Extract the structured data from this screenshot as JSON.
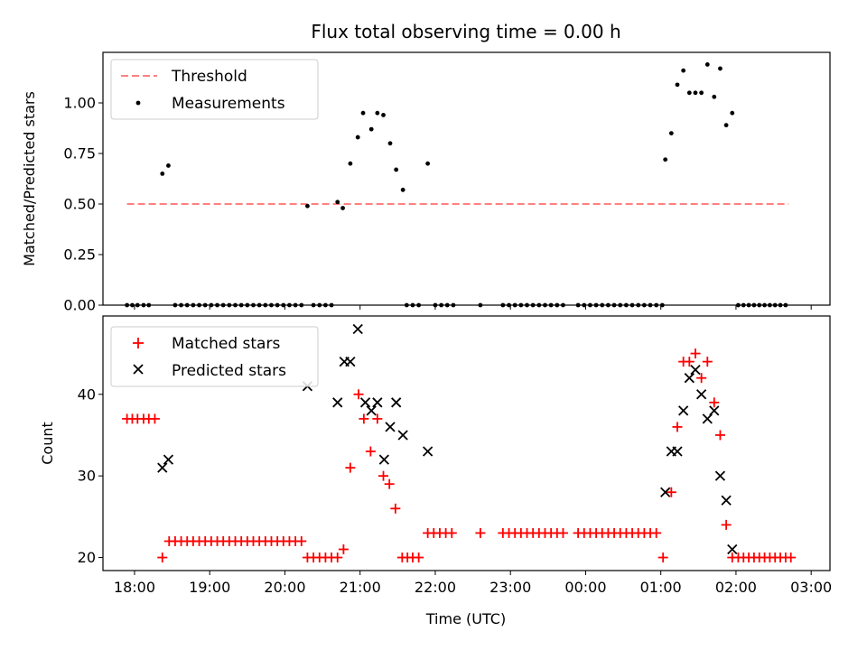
{
  "chart_data": [
    {
      "type": "scatter",
      "title": "Flux total observing time = 0.00 h",
      "ylabel": "Matched/Predicted stars",
      "ylim": [
        0,
        1.25
      ],
      "yticks": [
        0,
        0.25,
        0.5,
        0.75,
        1.0
      ],
      "ytick_labels": [
        "0.00",
        "0.25",
        "0.50",
        "0.75",
        "1.00"
      ],
      "xlim": [
        17.58,
        27.25
      ],
      "xticks": [
        18,
        19,
        20,
        21,
        22,
        23,
        24,
        25,
        26,
        27
      ],
      "legend": {
        "placement": "upper left",
        "entries": [
          "Threshold",
          "Measurements"
        ]
      },
      "threshold": {
        "name": "Threshold",
        "value": 0.5,
        "x": [
          17.9,
          26.7
        ],
        "color": "#ff8080"
      },
      "series": [
        {
          "name": "Measurements",
          "color": "#000000",
          "points": [
            [
              17.9,
              0
            ],
            [
              17.97,
              0
            ],
            [
              18.04,
              0
            ],
            [
              18.12,
              0
            ],
            [
              18.19,
              0
            ],
            [
              18.37,
              0.65
            ],
            [
              18.45,
              0.69
            ],
            [
              18.54,
              0
            ],
            [
              18.62,
              0
            ],
            [
              18.7,
              0
            ],
            [
              18.78,
              0
            ],
            [
              18.86,
              0
            ],
            [
              18.94,
              0
            ],
            [
              19.02,
              0
            ],
            [
              19.1,
              0
            ],
            [
              19.18,
              0
            ],
            [
              19.26,
              0
            ],
            [
              19.34,
              0
            ],
            [
              19.42,
              0
            ],
            [
              19.5,
              0
            ],
            [
              19.58,
              0
            ],
            [
              19.66,
              0
            ],
            [
              19.74,
              0
            ],
            [
              19.82,
              0
            ],
            [
              19.9,
              0
            ],
            [
              19.98,
              0
            ],
            [
              20.06,
              0
            ],
            [
              20.14,
              0
            ],
            [
              20.22,
              0
            ],
            [
              20.3,
              0.49
            ],
            [
              20.38,
              0
            ],
            [
              20.46,
              0
            ],
            [
              20.54,
              0
            ],
            [
              20.62,
              0
            ],
            [
              20.7,
              0.51
            ],
            [
              20.77,
              0.48
            ],
            [
              20.87,
              0.7
            ],
            [
              20.97,
              0.83
            ],
            [
              21.04,
              0.95
            ],
            [
              21.15,
              0.87
            ],
            [
              21.23,
              0.95
            ],
            [
              21.31,
              0.94
            ],
            [
              21.4,
              0.8
            ],
            [
              21.48,
              0.67
            ],
            [
              21.57,
              0.57
            ],
            [
              21.62,
              0
            ],
            [
              21.7,
              0
            ],
            [
              21.78,
              0
            ],
            [
              21.9,
              0.7
            ],
            [
              22.0,
              0
            ],
            [
              22.08,
              0
            ],
            [
              22.16,
              0
            ],
            [
              22.24,
              0
            ],
            [
              22.6,
              0
            ],
            [
              22.9,
              0
            ],
            [
              22.98,
              0
            ],
            [
              23.06,
              0
            ],
            [
              23.14,
              0
            ],
            [
              23.22,
              0
            ],
            [
              23.3,
              0
            ],
            [
              23.38,
              0
            ],
            [
              23.46,
              0
            ],
            [
              23.54,
              0
            ],
            [
              23.62,
              0
            ],
            [
              23.7,
              0
            ],
            [
              23.9,
              0
            ],
            [
              23.98,
              0
            ],
            [
              24.06,
              0
            ],
            [
              24.14,
              0
            ],
            [
              24.22,
              0
            ],
            [
              24.3,
              0
            ],
            [
              24.38,
              0
            ],
            [
              24.46,
              0
            ],
            [
              24.54,
              0
            ],
            [
              24.62,
              0
            ],
            [
              24.7,
              0
            ],
            [
              24.78,
              0
            ],
            [
              24.86,
              0
            ],
            [
              24.94,
              0
            ],
            [
              25.02,
              0
            ],
            [
              25.06,
              0.72
            ],
            [
              25.14,
              0.85
            ],
            [
              25.22,
              1.09
            ],
            [
              25.3,
              1.16
            ],
            [
              25.38,
              1.05
            ],
            [
              25.46,
              1.05
            ],
            [
              25.54,
              1.05
            ],
            [
              25.62,
              1.19
            ],
            [
              25.71,
              1.03
            ],
            [
              25.79,
              1.17
            ],
            [
              25.87,
              0.89
            ],
            [
              25.95,
              0.95
            ],
            [
              26.03,
              0
            ],
            [
              26.1,
              0
            ],
            [
              26.17,
              0
            ],
            [
              26.24,
              0
            ],
            [
              26.31,
              0
            ],
            [
              26.38,
              0
            ],
            [
              26.45,
              0
            ],
            [
              26.52,
              0
            ],
            [
              26.59,
              0
            ],
            [
              26.66,
              0
            ]
          ]
        }
      ]
    },
    {
      "type": "scatter",
      "xlabel": "Time (UTC)",
      "ylabel": "Count",
      "ylim": [
        18.4,
        49.6
      ],
      "yticks": [
        20,
        30,
        40
      ],
      "ytick_labels": [
        "20",
        "30",
        "40"
      ],
      "xlim": [
        17.58,
        27.25
      ],
      "xticks": [
        18,
        19,
        20,
        21,
        22,
        23,
        24,
        25,
        26,
        27
      ],
      "xtick_labels": [
        "18:00",
        "19:00",
        "20:00",
        "21:00",
        "22:00",
        "23:00",
        "00:00",
        "01:00",
        "02:00",
        "03:00"
      ],
      "legend": {
        "placement": "upper left",
        "entries": [
          "Matched stars",
          "Predicted stars"
        ]
      },
      "series": [
        {
          "name": "Matched stars",
          "color": "#ff0000",
          "marker": "plus",
          "points": [
            [
              17.9,
              37
            ],
            [
              17.97,
              37
            ],
            [
              18.04,
              37
            ],
            [
              18.12,
              37
            ],
            [
              18.19,
              37
            ],
            [
              18.27,
              37
            ],
            [
              18.37,
              20
            ],
            [
              18.46,
              22
            ],
            [
              18.54,
              22
            ],
            [
              18.62,
              22
            ],
            [
              18.7,
              22
            ],
            [
              18.78,
              22
            ],
            [
              18.86,
              22
            ],
            [
              18.94,
              22
            ],
            [
              19.02,
              22
            ],
            [
              19.1,
              22
            ],
            [
              19.18,
              22
            ],
            [
              19.26,
              22
            ],
            [
              19.34,
              22
            ],
            [
              19.42,
              22
            ],
            [
              19.5,
              22
            ],
            [
              19.58,
              22
            ],
            [
              19.66,
              22
            ],
            [
              19.74,
              22
            ],
            [
              19.82,
              22
            ],
            [
              19.9,
              22
            ],
            [
              19.98,
              22
            ],
            [
              20.06,
              22
            ],
            [
              20.14,
              22
            ],
            [
              20.22,
              22
            ],
            [
              20.3,
              20
            ],
            [
              20.38,
              20
            ],
            [
              20.46,
              20
            ],
            [
              20.54,
              20
            ],
            [
              20.62,
              20
            ],
            [
              20.7,
              20
            ],
            [
              20.78,
              21
            ],
            [
              20.87,
              31
            ],
            [
              20.98,
              40
            ],
            [
              21.05,
              37
            ],
            [
              21.14,
              33
            ],
            [
              21.23,
              37
            ],
            [
              21.31,
              30
            ],
            [
              21.39,
              29
            ],
            [
              21.47,
              26
            ],
            [
              21.56,
              20
            ],
            [
              21.63,
              20
            ],
            [
              21.7,
              20
            ],
            [
              21.78,
              20
            ],
            [
              21.9,
              23
            ],
            [
              21.98,
              23
            ],
            [
              22.06,
              23
            ],
            [
              22.14,
              23
            ],
            [
              22.22,
              23
            ],
            [
              22.6,
              23
            ],
            [
              22.9,
              23
            ],
            [
              22.98,
              23
            ],
            [
              23.06,
              23
            ],
            [
              23.14,
              23
            ],
            [
              23.22,
              23
            ],
            [
              23.3,
              23
            ],
            [
              23.38,
              23
            ],
            [
              23.46,
              23
            ],
            [
              23.54,
              23
            ],
            [
              23.62,
              23
            ],
            [
              23.7,
              23
            ],
            [
              23.9,
              23
            ],
            [
              23.98,
              23
            ],
            [
              24.06,
              23
            ],
            [
              24.14,
              23
            ],
            [
              24.22,
              23
            ],
            [
              24.3,
              23
            ],
            [
              24.38,
              23
            ],
            [
              24.46,
              23
            ],
            [
              24.54,
              23
            ],
            [
              24.62,
              23
            ],
            [
              24.7,
              23
            ],
            [
              24.78,
              23
            ],
            [
              24.86,
              23
            ],
            [
              24.94,
              23
            ],
            [
              25.03,
              20
            ],
            [
              25.14,
              28
            ],
            [
              25.22,
              36
            ],
            [
              25.3,
              44
            ],
            [
              25.38,
              44
            ],
            [
              25.46,
              45
            ],
            [
              25.54,
              42
            ],
            [
              25.62,
              44
            ],
            [
              25.71,
              39
            ],
            [
              25.79,
              35
            ],
            [
              25.87,
              24
            ],
            [
              25.95,
              20
            ],
            [
              26.03,
              20
            ],
            [
              26.1,
              20
            ],
            [
              26.17,
              20
            ],
            [
              26.24,
              20
            ],
            [
              26.31,
              20
            ],
            [
              26.38,
              20
            ],
            [
              26.45,
              20
            ],
            [
              26.52,
              20
            ],
            [
              26.59,
              20
            ],
            [
              26.66,
              20
            ],
            [
              26.73,
              20
            ]
          ]
        },
        {
          "name": "Predicted stars",
          "color": "#000000",
          "marker": "x",
          "points": [
            [
              18.37,
              31
            ],
            [
              18.45,
              32
            ],
            [
              20.3,
              41
            ],
            [
              20.7,
              39
            ],
            [
              20.79,
              44
            ],
            [
              20.87,
              44
            ],
            [
              20.97,
              48
            ],
            [
              21.07,
              39
            ],
            [
              21.15,
              38
            ],
            [
              21.23,
              39
            ],
            [
              21.32,
              32
            ],
            [
              21.4,
              36
            ],
            [
              21.48,
              39
            ],
            [
              21.57,
              35
            ],
            [
              21.9,
              33
            ],
            [
              25.06,
              28
            ],
            [
              25.14,
              33
            ],
            [
              25.22,
              33
            ],
            [
              25.3,
              38
            ],
            [
              25.38,
              42
            ],
            [
              25.46,
              43
            ],
            [
              25.54,
              40
            ],
            [
              25.62,
              37
            ],
            [
              25.71,
              38
            ],
            [
              25.79,
              30
            ],
            [
              25.87,
              27
            ],
            [
              25.95,
              21
            ]
          ]
        }
      ]
    }
  ]
}
